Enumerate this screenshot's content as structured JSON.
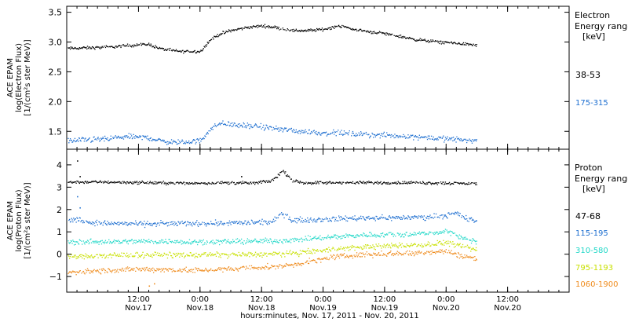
{
  "colors": {
    "black": "#000000",
    "blue": "#1e6fd0",
    "cyan": "#22d8c8",
    "yellow": "#c8e000",
    "orange": "#ef8c1e"
  },
  "x_axis": {
    "label": "hours:minutes, Nov. 17, 2011 - Nov. 20, 2011",
    "range_hours": [
      -8,
      90
    ],
    "ticks": [
      {
        "t": 6,
        "time": "12:00",
        "date": "Nov.17"
      },
      {
        "t": 18,
        "time": "0:00",
        "date": "Nov.18"
      },
      {
        "t": 30,
        "time": "12:00",
        "date": "Nov.18"
      },
      {
        "t": 42,
        "time": "0:00",
        "date": "Nov.19"
      },
      {
        "t": 54,
        "time": "12:00",
        "date": "Nov.19"
      },
      {
        "t": 66,
        "time": "0:00",
        "date": "Nov.20"
      },
      {
        "t": 78,
        "time": "12:00",
        "date": "Nov.20"
      }
    ]
  },
  "chart_data": [
    {
      "type": "scatter",
      "panel": "electron",
      "ylabel_lines": [
        "ACE EPAM",
        "log(Electron Flux)",
        "[1/(cm²s ster MeV)]"
      ],
      "ylim": [
        1.2,
        3.6
      ],
      "yticks": [
        1.5,
        2.0,
        2.5,
        3.0,
        3.5
      ],
      "ytick_labels": [
        "1.5",
        "2.0",
        "2.5",
        "3.0",
        "3.5"
      ],
      "legend_title": [
        "Electron",
        "Energy ranges",
        "[keV]"
      ],
      "series": [
        {
          "name": "38-53",
          "color": "#000000",
          "x": [
            -8,
            0,
            4,
            8,
            10,
            12,
            14,
            18,
            20,
            22,
            24,
            27,
            30,
            33,
            36,
            39,
            42,
            45,
            48,
            51,
            54,
            57,
            60,
            63,
            66,
            69,
            72
          ],
          "y": [
            2.9,
            2.92,
            2.95,
            2.97,
            2.9,
            2.87,
            2.85,
            2.85,
            3.05,
            3.15,
            3.2,
            3.25,
            3.28,
            3.25,
            3.2,
            3.2,
            3.22,
            3.28,
            3.22,
            3.18,
            3.15,
            3.1,
            3.05,
            3.02,
            3.0,
            2.98,
            2.95
          ]
        },
        {
          "name": "175-315",
          "color": "#1e6fd0",
          "x": [
            -8,
            0,
            4,
            8,
            10,
            12,
            14,
            18,
            20,
            22,
            24,
            27,
            30,
            33,
            36,
            39,
            42,
            45,
            48,
            51,
            54,
            57,
            60,
            63,
            66,
            69,
            72
          ],
          "y": [
            1.35,
            1.38,
            1.42,
            1.4,
            1.35,
            1.33,
            1.32,
            1.35,
            1.55,
            1.65,
            1.62,
            1.6,
            1.58,
            1.55,
            1.52,
            1.5,
            1.48,
            1.48,
            1.46,
            1.45,
            1.44,
            1.43,
            1.42,
            1.4,
            1.38,
            1.37,
            1.35
          ]
        }
      ]
    },
    {
      "type": "scatter",
      "panel": "proton",
      "ylabel_lines": [
        "ACE EPAM",
        "log(Proton Flux)",
        "[1/(cm²s ster MeV)]"
      ],
      "ylim": [
        -1.7,
        4.7
      ],
      "yticks": [
        -1,
        0,
        1,
        2,
        3,
        4
      ],
      "ytick_labels": [
        "−1",
        "0",
        "1",
        "2",
        "3",
        "4"
      ],
      "legend_title": [
        "Proton",
        "Energy ranges",
        "[keV]"
      ],
      "series": [
        {
          "name": "47-68",
          "color": "#000000",
          "x": [
            -8,
            0,
            8,
            16,
            24,
            28,
            32,
            34,
            35,
            36,
            38,
            44,
            52,
            60,
            66,
            72
          ],
          "y": [
            3.25,
            3.25,
            3.22,
            3.2,
            3.22,
            3.2,
            3.3,
            3.75,
            3.55,
            3.3,
            3.22,
            3.22,
            3.22,
            3.22,
            3.2,
            3.18
          ],
          "spikes": [
            {
              "x": -6,
              "y": 4.2
            },
            {
              "x": -5.5,
              "y": 3.5
            },
            {
              "x": 26,
              "y": 3.5
            }
          ]
        },
        {
          "name": "115-195",
          "color": "#1e6fd0",
          "x": [
            -8,
            -6,
            -4,
            0,
            8,
            16,
            24,
            32,
            34,
            36,
            38,
            44,
            50,
            56,
            62,
            66,
            68,
            70,
            72
          ],
          "y": [
            1.5,
            1.6,
            1.45,
            1.4,
            1.38,
            1.4,
            1.42,
            1.45,
            1.85,
            1.55,
            1.55,
            1.6,
            1.65,
            1.65,
            1.68,
            1.75,
            1.85,
            1.6,
            1.5
          ],
          "spikes": [
            {
              "x": -6,
              "y": 2.6
            },
            {
              "x": -5.5,
              "y": 2.1
            }
          ]
        },
        {
          "name": "310-580",
          "color": "#22d8c8",
          "x": [
            -8,
            0,
            8,
            16,
            24,
            32,
            36,
            40,
            44,
            50,
            56,
            62,
            66,
            68,
            70,
            72
          ],
          "y": [
            0.55,
            0.58,
            0.6,
            0.58,
            0.58,
            0.62,
            0.65,
            0.72,
            0.8,
            0.88,
            0.9,
            0.95,
            1.05,
            0.85,
            0.7,
            0.6
          ]
        },
        {
          "name": "795-1193",
          "color": "#c8e000",
          "x": [
            -8,
            0,
            8,
            16,
            24,
            32,
            36,
            40,
            44,
            50,
            56,
            62,
            66,
            68,
            70,
            72
          ],
          "y": [
            -0.1,
            -0.05,
            0.0,
            -0.02,
            0.0,
            0.02,
            0.05,
            0.15,
            0.25,
            0.35,
            0.4,
            0.45,
            0.55,
            0.4,
            0.3,
            0.2
          ]
        },
        {
          "name": "1060-1900",
          "color": "#ef8c1e",
          "x": [
            -8,
            0,
            8,
            16,
            24,
            32,
            36,
            40,
            44,
            50,
            56,
            62,
            66,
            68,
            70,
            72
          ],
          "y": [
            -0.8,
            -0.7,
            -0.65,
            -0.7,
            -0.65,
            -0.55,
            -0.45,
            -0.3,
            -0.1,
            0.0,
            0.05,
            0.1,
            0.15,
            0.0,
            -0.1,
            -0.2
          ],
          "spikes": [
            {
              "x": 8,
              "y": -1.4
            },
            {
              "x": 9,
              "y": -1.3
            }
          ]
        }
      ]
    }
  ]
}
